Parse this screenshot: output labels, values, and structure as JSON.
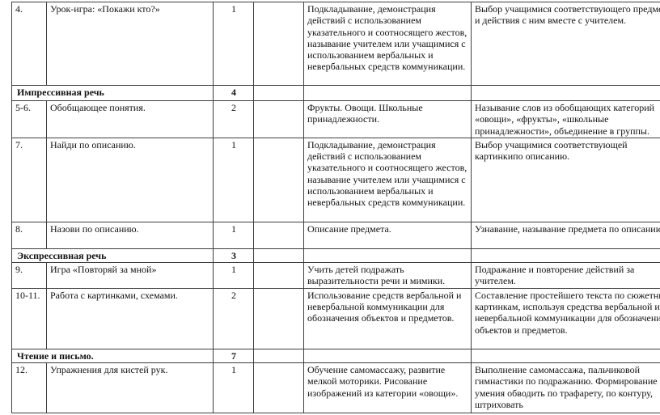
{
  "document": {
    "background_color": "#ffffff",
    "border_color": "#3f3f3f",
    "text_color": "#111111"
  },
  "table": {
    "column_roles": [
      "number",
      "theme",
      "hours",
      "mark",
      "content",
      "outcome"
    ],
    "rows": [
      {
        "type": "item",
        "num": "4.",
        "theme": "Урок-игра: «Покажи кто?»",
        "hours": "1",
        "mark": "",
        "content": "Подкладывание, демонстрация действий с использованием указательного и соотносящего жестов, называние учителем или учащимися с использованием вербальных и невербальных средств коммуникации.",
        "outcome": "Выбор учащимися соответствующего предмета и действия с ним вместе с учителем."
      },
      {
        "type": "section",
        "title": "Импрессивная речь",
        "hours": "4"
      },
      {
        "type": "item",
        "num": "5-6.",
        "theme": "Обобщающее понятия.",
        "hours": "2",
        "mark": "",
        "content": "Фрукты. Овощи. Школьные принадлежности.",
        "outcome": "Называние слов из обобщающих категорий «овощи», «фрукты», «школьные принадлежности», объединение в группы."
      },
      {
        "type": "item",
        "num": "7.",
        "theme": "Найди по описанию.",
        "hours": "1",
        "mark": "",
        "content": "Подкладывание, демонстрация действий с использованием указательного и соотносящего жестов, называние учителем или учащимися с использованием вербальных и невербальных средств коммуникации.",
        "outcome": "Выбор учащимися соответствующей картинкипо описанию."
      },
      {
        "type": "item",
        "num": "8.",
        "theme": "Назови по описанию.",
        "hours": "1",
        "mark": "",
        "content": "Описание предмета.",
        "outcome": "Узнавание, называние предмета по описанию."
      },
      {
        "type": "section",
        "title": "Экспрессивная речь",
        "hours": "3"
      },
      {
        "type": "item",
        "num": "9.",
        "theme": "Игра «Повторяй за мной»",
        "hours": "1",
        "mark": "",
        "content": "Учить детей подражать выразительности речи и мимики.",
        "outcome": "Подражание и повторение действий за учителем."
      },
      {
        "type": "item",
        "num": "10-11.",
        "theme": "Работа с картинками, схемами.",
        "hours": "2",
        "mark": "",
        "content": "Использование средств вербальной и невербальной коммуникации для обозначения объектов и предметов.",
        "outcome": "Составление простейшего текста по сюжетным картинкам, используя средства вербальной и невербальной коммуникации для обозначения объектов и предметов."
      },
      {
        "type": "section",
        "title": "Чтение и письмо.",
        "hours": "7"
      },
      {
        "type": "item",
        "num": "12.",
        "theme": "Упражнения для кистей рук.",
        "hours": "1",
        "mark": "",
        "content": "Обучение самомассажу, развитие мелкой моторики. Рисование изображений из категории «овощи».",
        "outcome": "Выполнение самомассажа, пальчиковой гимнастики по подражанию. Формирование умения обводить по трафарету, по контуру, штриховать"
      }
    ]
  }
}
